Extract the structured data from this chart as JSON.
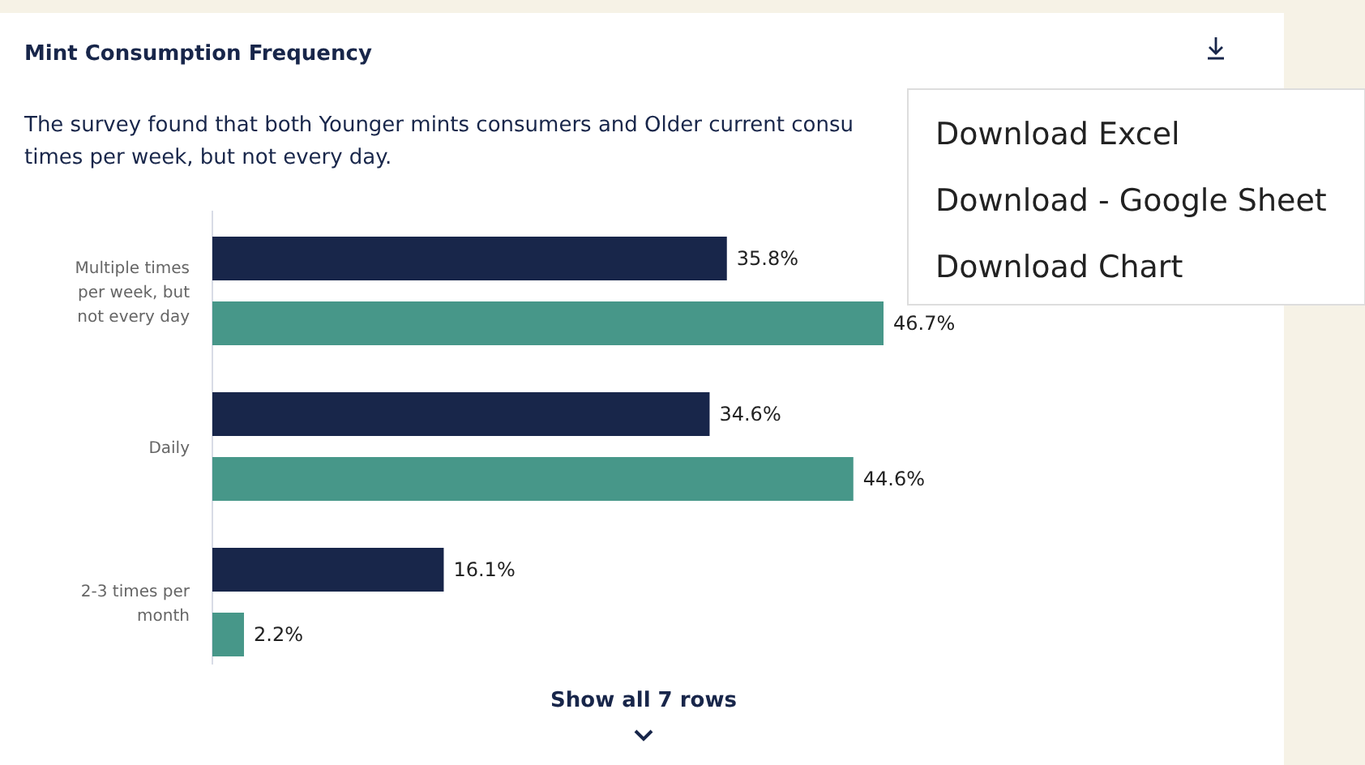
{
  "chart_data": {
    "type": "bar",
    "orientation": "horizontal",
    "title": "Mint Consumption Frequency",
    "subtitle": "The survey found that both Younger mints consumers and Older current consu\ntimes per week, but not every day.",
    "categories": [
      "Multiple times per week, but not every day",
      "Daily",
      "2-3 times per month"
    ],
    "series": [
      {
        "color": "#18264a",
        "values": [
          35.8,
          34.6,
          16.1
        ],
        "value_labels": [
          "35.8%",
          "34.6%",
          "16.1%"
        ]
      },
      {
        "color": "#479789",
        "values": [
          46.7,
          44.6,
          2.2
        ],
        "value_labels": [
          "46.7%",
          "44.6%",
          "2.2%"
        ]
      }
    ],
    "annotations": [
      "Show all 7 rows",
      "Download Excel",
      "Download - Google Sheet",
      "Download Chart"
    ]
  }
}
